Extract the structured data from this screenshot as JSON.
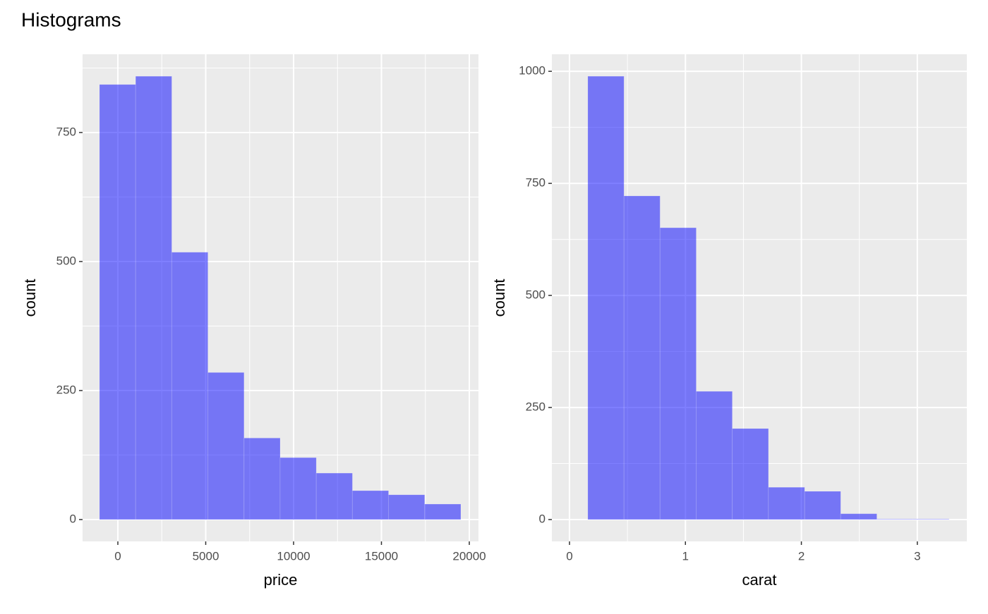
{
  "title": "Histograms",
  "chart_data": [
    {
      "type": "histogram",
      "xlabel": "price",
      "ylabel": "count",
      "color": "#0000ff",
      "alpha": 0.5,
      "grid": true,
      "bins": [
        -1044,
        1012,
        3068,
        5124,
        7180,
        9236,
        11292,
        13348,
        15404,
        17460,
        19516
      ],
      "values": [
        843,
        859,
        518,
        285,
        158,
        120,
        90,
        56,
        48,
        30
      ],
      "xlim": [
        -2008,
        20522
      ],
      "ylim": [
        -42.3,
        901.6
      ],
      "xticks": [
        0,
        5000,
        10000,
        15000,
        20000
      ],
      "yticks": [
        0,
        250,
        500,
        750
      ],
      "minor_xticks": [
        2500,
        7500,
        12500,
        17500
      ],
      "minor_yticks": [
        125,
        375,
        625,
        875
      ]
    },
    {
      "type": "histogram",
      "xlabel": "carat",
      "ylabel": "count",
      "color": "#0000ff",
      "alpha": 0.5,
      "grid": true,
      "bins": [
        0.158,
        0.47,
        0.781,
        1.093,
        1.404,
        1.716,
        2.028,
        2.339,
        2.651,
        2.962,
        3.274
      ],
      "values": [
        989,
        722,
        651,
        286,
        203,
        72,
        63,
        13,
        1,
        1
      ],
      "xlim": [
        -0.152,
        3.427
      ],
      "ylim": [
        -48.7,
        1038
      ],
      "xticks": [
        0,
        1,
        2,
        3
      ],
      "yticks": [
        0,
        250,
        500,
        750,
        1000
      ],
      "minor_xticks": [
        0.5,
        1.5,
        2.5
      ],
      "minor_yticks": [
        125,
        375,
        625,
        875
      ]
    }
  ]
}
